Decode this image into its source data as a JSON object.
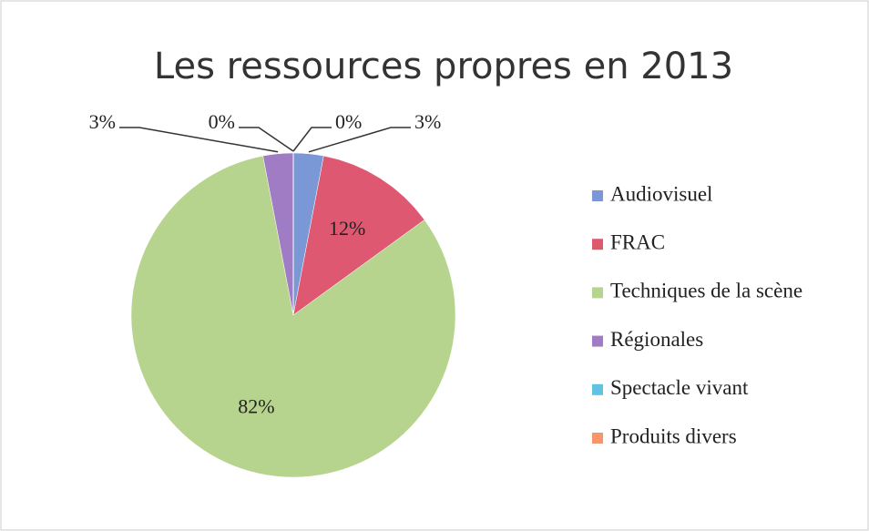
{
  "chart_data": {
    "type": "pie",
    "title": "Les ressources propres en 2013",
    "categories": [
      "Audiovisuel",
      "FRAC",
      "Techniques de la scène",
      "Régionales",
      "Spectacle vivant",
      "Produits divers"
    ],
    "values": [
      3,
      12,
      82,
      3,
      0,
      0
    ],
    "value_labels": [
      "3%",
      "12%",
      "82%",
      "3%",
      "0%",
      "0%"
    ],
    "colors": [
      "#7b98d6",
      "#dd5870",
      "#b6d48d",
      "#a07cc5",
      "#5cc3e0",
      "#f7966b"
    ],
    "legend": "right"
  }
}
